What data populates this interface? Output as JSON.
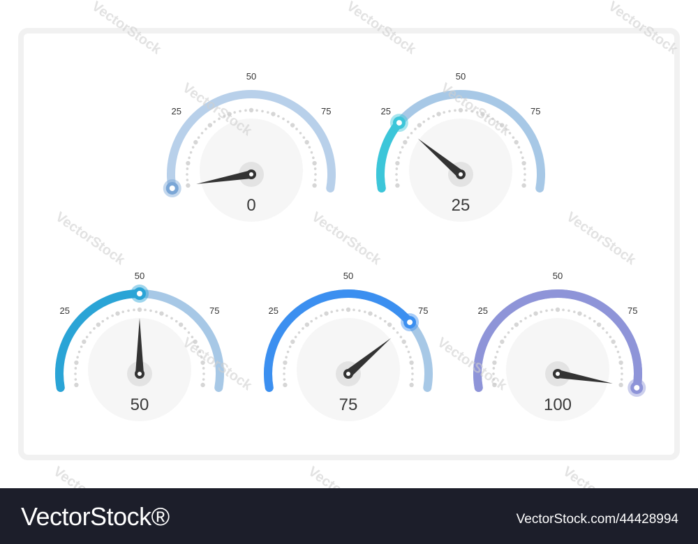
{
  "gauges": [
    {
      "value": 0,
      "label": "0",
      "ticks": [
        "25",
        "50",
        "75"
      ],
      "color": "#7aa6d6",
      "light": "#b8d0ea"
    },
    {
      "value": 25,
      "label": "25",
      "ticks": [
        "25",
        "50",
        "75"
      ],
      "color": "#3cc6d9",
      "light": "#a7c8e6"
    },
    {
      "value": 50,
      "label": "50",
      "ticks": [
        "25",
        "50",
        "75"
      ],
      "color": "#2aa4d6",
      "light": "#a7c8e6"
    },
    {
      "value": 75,
      "label": "75",
      "ticks": [
        "25",
        "50",
        "75"
      ],
      "color": "#3b8ff0",
      "light": "#a7c8e6"
    },
    {
      "value": 100,
      "label": "100",
      "ticks": [
        "25",
        "50",
        "75"
      ],
      "color": "#8e94d8",
      "light": "#a7aee4"
    }
  ],
  "watermark": "VectorStock",
  "footer": {
    "brand": "VectorStock®",
    "image_id": "VectorStock.com/44428994"
  },
  "colors": {
    "needle": "#333333",
    "hub": "#e3e3e3",
    "face": "#f6f6f6",
    "dots": "#d6d6d6",
    "footer_bg": "#1c1e2a"
  }
}
